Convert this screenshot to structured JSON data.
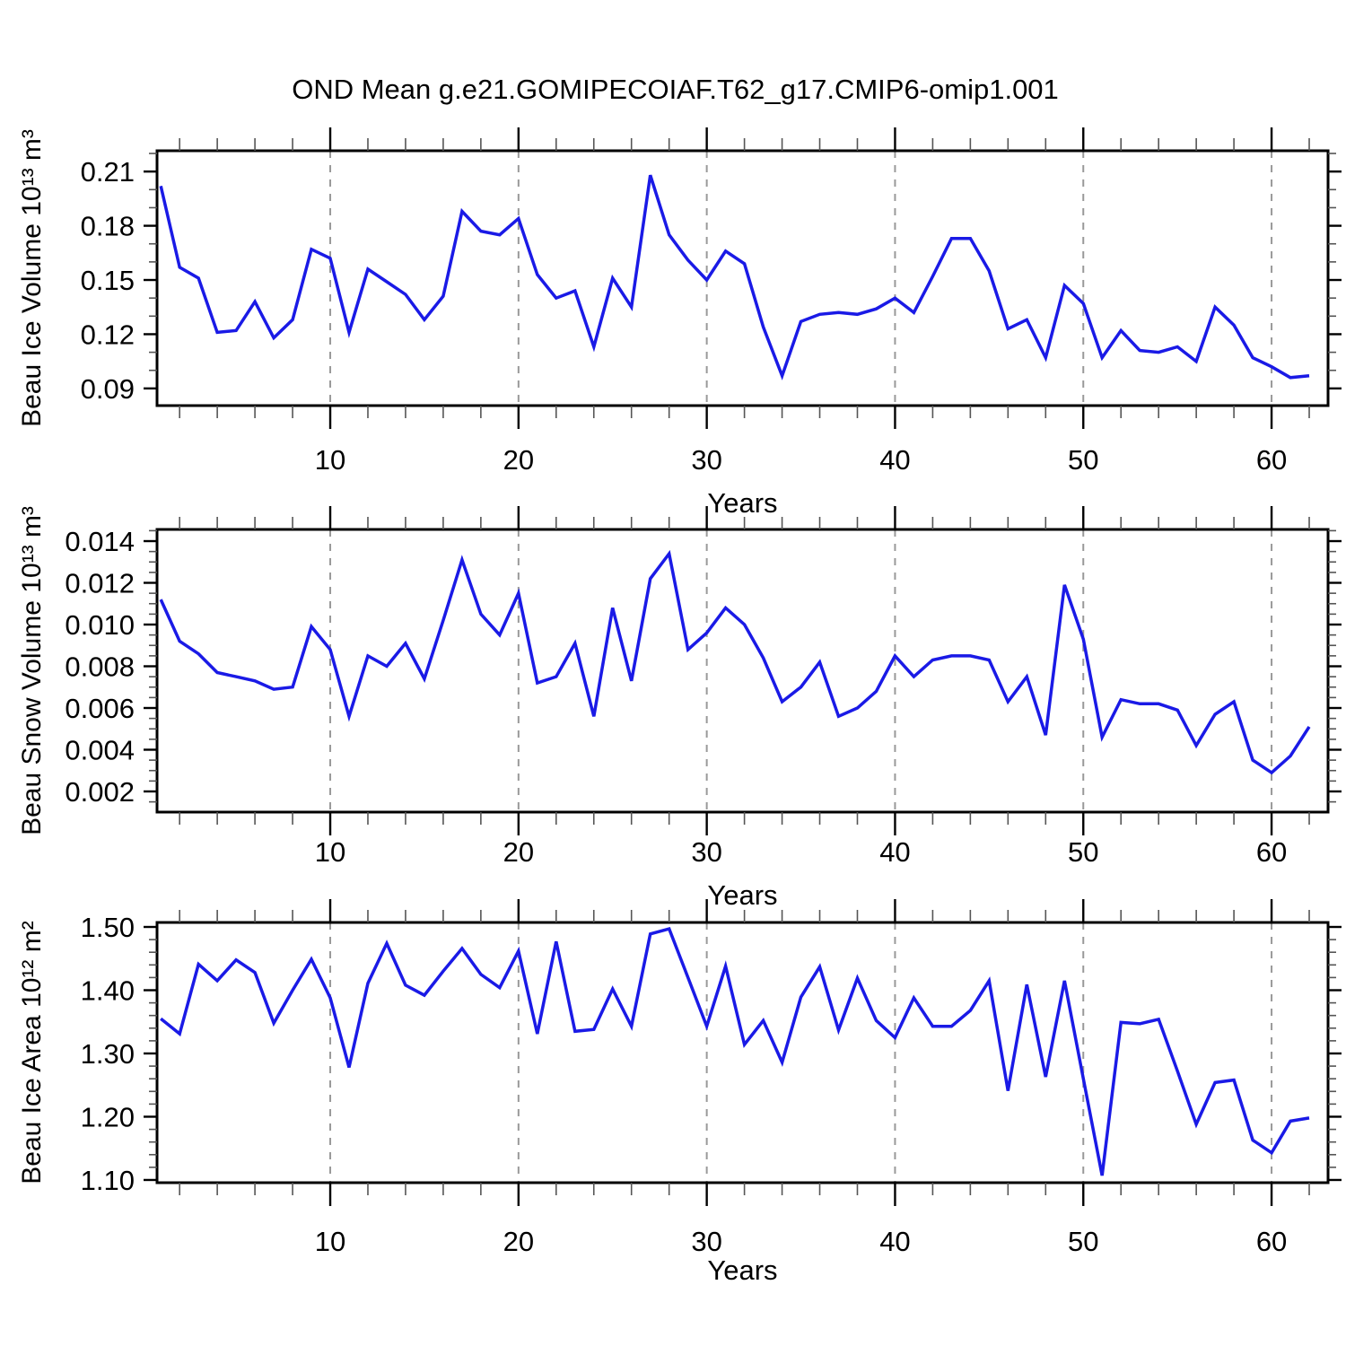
{
  "title": "OND Mean g.e21.GOMIPECOIAF.T62_g17.CMIP6-omip1.001",
  "colors": {
    "line": "#1a1ae6",
    "axis": "#000000",
    "grid": "#999999",
    "minor_tick": "#555555"
  },
  "x_axis": {
    "label": "Years",
    "ticks": [
      10,
      20,
      30,
      40,
      50,
      60
    ],
    "tick_labels": [
      "10",
      "20",
      "30",
      "40",
      "50",
      "60"
    ],
    "minor_step": 2,
    "range": [
      0.8,
      63.0
    ],
    "gridlines": [
      10,
      20,
      30,
      40,
      50,
      60
    ]
  },
  "chart_data": [
    {
      "type": "line",
      "name": "beau-ice-volume",
      "y_label": "Beau Ice Volume 10¹³ m³",
      "y_ticks": [
        0.21,
        0.18,
        0.15,
        0.12,
        0.09
      ],
      "y_tick_labels": [
        "0.21",
        "0.18",
        "0.15",
        "0.12",
        "0.09"
      ],
      "y_minor_step": 0.01,
      "y_range": [
        0.0805,
        0.2215
      ],
      "x_start": 1,
      "values": [
        0.202,
        0.157,
        0.151,
        0.121,
        0.122,
        0.138,
        0.118,
        0.128,
        0.167,
        0.162,
        0.121,
        0.156,
        0.149,
        0.142,
        0.128,
        0.141,
        0.188,
        0.177,
        0.175,
        0.184,
        0.153,
        0.14,
        0.144,
        0.113,
        0.151,
        0.135,
        0.208,
        0.175,
        0.161,
        0.15,
        0.166,
        0.159,
        0.124,
        0.097,
        0.127,
        0.131,
        0.132,
        0.131,
        0.134,
        0.14,
        0.132,
        0.152,
        0.173,
        0.173,
        0.155,
        0.123,
        0.128,
        0.107,
        0.147,
        0.137,
        0.107,
        0.122,
        0.111,
        0.11,
        0.113,
        0.105,
        0.135,
        0.125,
        0.107,
        0.102,
        0.096,
        0.097
      ]
    },
    {
      "type": "line",
      "name": "beau-snow-volume",
      "y_label": "Beau Snow Volume 10¹³ m³",
      "y_ticks": [
        0.014,
        0.012,
        0.01,
        0.008,
        0.006,
        0.004,
        0.002
      ],
      "y_tick_labels": [
        "0.014",
        "0.012",
        "0.010",
        "0.008",
        "0.006",
        "0.004",
        "0.002"
      ],
      "y_minor_step": 0.0005,
      "y_range": [
        0.00101,
        0.01456
      ],
      "x_start": 1,
      "values": [
        0.0112,
        0.0092,
        0.0086,
        0.0077,
        0.0075,
        0.0073,
        0.0069,
        0.007,
        0.0099,
        0.0088,
        0.0056,
        0.0085,
        0.008,
        0.0091,
        0.0074,
        0.0102,
        0.0131,
        0.0105,
        0.0095,
        0.0115,
        0.0072,
        0.0075,
        0.0091,
        0.0056,
        0.0108,
        0.0073,
        0.0122,
        0.0134,
        0.0088,
        0.0096,
        0.0108,
        0.01,
        0.0084,
        0.0063,
        0.007,
        0.0082,
        0.0056,
        0.006,
        0.0068,
        0.0085,
        0.0075,
        0.0083,
        0.0085,
        0.0085,
        0.0083,
        0.0063,
        0.0075,
        0.0047,
        0.0119,
        0.0093,
        0.0046,
        0.0064,
        0.0062,
        0.0062,
        0.0059,
        0.0042,
        0.0057,
        0.0063,
        0.0035,
        0.0029,
        0.0037,
        0.0051
      ]
    },
    {
      "type": "line",
      "name": "beau-ice-area",
      "y_label": "Beau Ice Area 10¹² m²",
      "y_ticks": [
        1.5,
        1.4,
        1.3,
        1.2,
        1.1
      ],
      "y_tick_labels": [
        "1.50",
        "1.40",
        "1.30",
        "1.20",
        "1.10"
      ],
      "y_minor_step": 0.02,
      "y_range": [
        1.0957,
        1.5071
      ],
      "x_start": 1,
      "values": [
        1.355,
        1.331,
        1.441,
        1.415,
        1.448,
        1.428,
        1.348,
        1.4,
        1.449,
        1.388,
        1.278,
        1.411,
        1.474,
        1.408,
        1.392,
        1.43,
        1.466,
        1.425,
        1.404,
        1.462,
        1.331,
        1.477,
        1.335,
        1.338,
        1.402,
        1.343,
        1.489,
        1.497,
        1.42,
        1.343,
        1.438,
        1.314,
        1.352,
        1.286,
        1.389,
        1.437,
        1.337,
        1.419,
        1.352,
        1.325,
        1.388,
        1.343,
        1.343,
        1.368,
        1.415,
        1.241,
        1.409,
        1.263,
        1.415,
        1.26,
        1.107,
        1.349,
        1.347,
        1.354,
        1.272,
        1.188,
        1.254,
        1.258,
        1.163,
        1.143,
        1.193,
        1.198
      ]
    }
  ]
}
